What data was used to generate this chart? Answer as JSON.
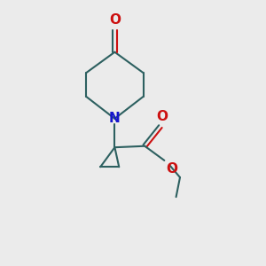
{
  "background_color": "#ebebeb",
  "bond_color": "#2d6060",
  "nitrogen_color": "#1515cc",
  "oxygen_color": "#cc1010",
  "line_width": 1.5,
  "figsize": [
    3.0,
    3.0
  ],
  "dpi": 100,
  "xlim": [
    0,
    10
  ],
  "ylim": [
    0,
    10
  ]
}
